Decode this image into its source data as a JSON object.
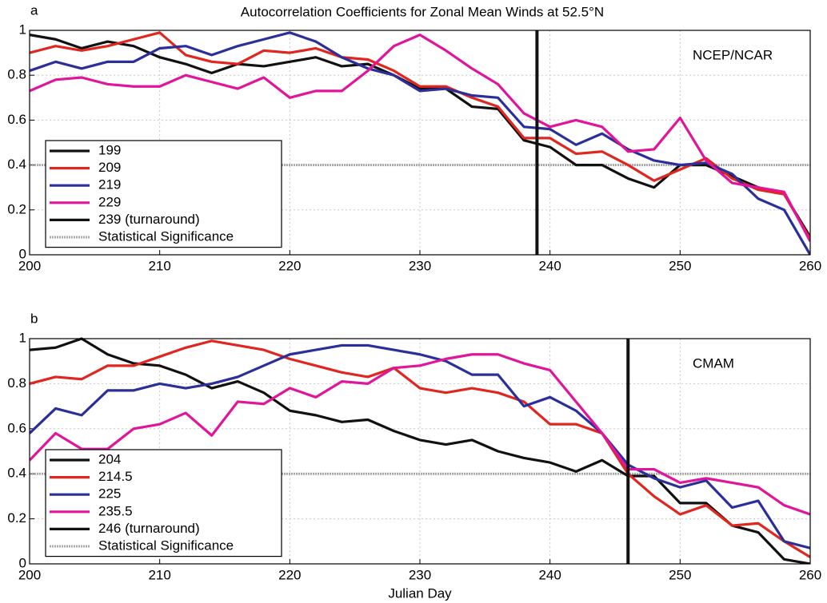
{
  "chart_data": [
    {
      "type": "line",
      "label": "a",
      "title": "Autocorrelation Coefficients for Zonal Mean Winds at 52.5°N",
      "annotation": "NCEP/NCAR",
      "x": [
        200,
        202,
        204,
        206,
        208,
        210,
        212,
        214,
        216,
        218,
        220,
        222,
        224,
        226,
        228,
        230,
        232,
        234,
        236,
        238,
        240,
        242,
        244,
        246,
        248,
        250,
        252,
        254,
        256,
        258,
        260
      ],
      "series": [
        {
          "name": "199",
          "color": "#111111",
          "values": [
            0.98,
            0.96,
            0.92,
            0.95,
            0.93,
            0.88,
            0.85,
            0.81,
            0.85,
            0.84,
            0.86,
            0.88,
            0.84,
            0.85,
            0.8,
            0.74,
            0.74,
            0.66,
            0.65,
            0.51,
            0.48,
            0.4,
            0.4,
            0.34,
            0.3,
            0.4,
            0.4,
            0.35,
            0.3,
            0.27,
            0.08
          ]
        },
        {
          "name": "209",
          "color": "#e0261f",
          "values": [
            0.9,
            0.93,
            0.91,
            0.93,
            0.96,
            0.99,
            0.89,
            0.86,
            0.85,
            0.91,
            0.9,
            0.92,
            0.88,
            0.87,
            0.82,
            0.75,
            0.75,
            0.7,
            0.66,
            0.52,
            0.52,
            0.45,
            0.46,
            0.4,
            0.33,
            0.38,
            0.43,
            0.34,
            0.29,
            0.27,
            0.07
          ]
        },
        {
          "name": "219",
          "color": "#2a2f9a",
          "values": [
            0.82,
            0.86,
            0.83,
            0.86,
            0.86,
            0.92,
            0.93,
            0.89,
            0.93,
            0.96,
            0.99,
            0.95,
            0.88,
            0.83,
            0.8,
            0.73,
            0.74,
            0.71,
            0.7,
            0.57,
            0.56,
            0.49,
            0.54,
            0.47,
            0.42,
            0.4,
            0.41,
            0.36,
            0.25,
            0.2,
            0
          ]
        },
        {
          "name": "229",
          "color": "#e0159a",
          "values": [
            0.73,
            0.78,
            0.79,
            0.76,
            0.75,
            0.75,
            0.8,
            0.77,
            0.74,
            0.79,
            0.7,
            0.73,
            0.73,
            0.82,
            0.93,
            0.98,
            0.91,
            0.83,
            0.76,
            0.63,
            0.57,
            0.6,
            0.57,
            0.46,
            0.47,
            0.61,
            0.42,
            0.32,
            0.3,
            0.28,
            0.06
          ]
        }
      ],
      "turnaround": {
        "name": "239 (turnaround)",
        "x": 239,
        "color": "#111111"
      },
      "significance": {
        "name": "Statistical Significance",
        "value": 0.4,
        "color": "#aaaaaa"
      },
      "xlim": [
        200,
        260
      ],
      "xticks": [
        200,
        210,
        220,
        230,
        240,
        250,
        260
      ],
      "ylim": [
        0,
        1
      ],
      "yticks": [
        0,
        0.2,
        0.4,
        0.6,
        0.8,
        1
      ],
      "grid": true,
      "legend": "lower left"
    },
    {
      "type": "line",
      "label": "b",
      "annotation": "CMAM",
      "xlabel": "Julian Day",
      "x": [
        200,
        202,
        204,
        206,
        208,
        210,
        212,
        214,
        216,
        218,
        220,
        222,
        224,
        226,
        228,
        230,
        232,
        234,
        236,
        238,
        240,
        242,
        244,
        246,
        248,
        250,
        252,
        254,
        256,
        258,
        260
      ],
      "series": [
        {
          "name": "204",
          "color": "#111111",
          "values": [
            0.95,
            0.96,
            1.0,
            0.93,
            0.89,
            0.88,
            0.84,
            0.78,
            0.81,
            0.76,
            0.68,
            0.66,
            0.63,
            0.64,
            0.59,
            0.55,
            0.53,
            0.55,
            0.5,
            0.47,
            0.45,
            0.41,
            0.46,
            0.39,
            0.39,
            0.27,
            0.27,
            0.17,
            0.14,
            0.02,
            0
          ]
        },
        {
          "name": "214.5",
          "color": "#e0261f",
          "values": [
            0.8,
            0.83,
            0.82,
            0.88,
            0.88,
            0.92,
            0.96,
            0.99,
            0.97,
            0.95,
            0.91,
            0.88,
            0.85,
            0.83,
            0.87,
            0.78,
            0.76,
            0.78,
            0.76,
            0.72,
            0.62,
            0.62,
            0.58,
            0.4,
            0.3,
            0.22,
            0.26,
            0.17,
            0.18,
            0.1,
            0.03
          ]
        },
        {
          "name": "225",
          "color": "#2a2f9a",
          "values": [
            0.58,
            0.69,
            0.66,
            0.77,
            0.77,
            0.8,
            0.78,
            0.8,
            0.83,
            0.88,
            0.93,
            0.95,
            0.97,
            0.97,
            0.95,
            0.93,
            0.9,
            0.84,
            0.84,
            0.7,
            0.74,
            0.68,
            0.58,
            0.44,
            0.38,
            0.34,
            0.37,
            0.25,
            0.28,
            0.1,
            0.07
          ]
        },
        {
          "name": "235.5",
          "color": "#e0159a",
          "values": [
            0.46,
            0.58,
            0.51,
            0.51,
            0.6,
            0.62,
            0.67,
            0.57,
            0.72,
            0.71,
            0.78,
            0.74,
            0.81,
            0.8,
            0.87,
            0.88,
            0.91,
            0.93,
            0.93,
            0.89,
            0.86,
            0.72,
            0.58,
            0.42,
            0.42,
            0.36,
            0.38,
            0.36,
            0.34,
            0.26,
            0.22
          ]
        }
      ],
      "turnaround": {
        "name": "246 (turnaround)",
        "x": 246,
        "color": "#111111"
      },
      "significance": {
        "name": "Statistical Significance",
        "value": 0.4,
        "color": "#aaaaaa"
      },
      "xlim": [
        200,
        260
      ],
      "xticks": [
        200,
        210,
        220,
        230,
        240,
        250,
        260
      ],
      "ylim": [
        0,
        1
      ],
      "yticks": [
        0,
        0.2,
        0.4,
        0.6,
        0.8,
        1
      ],
      "grid": true,
      "legend": "lower left"
    }
  ]
}
